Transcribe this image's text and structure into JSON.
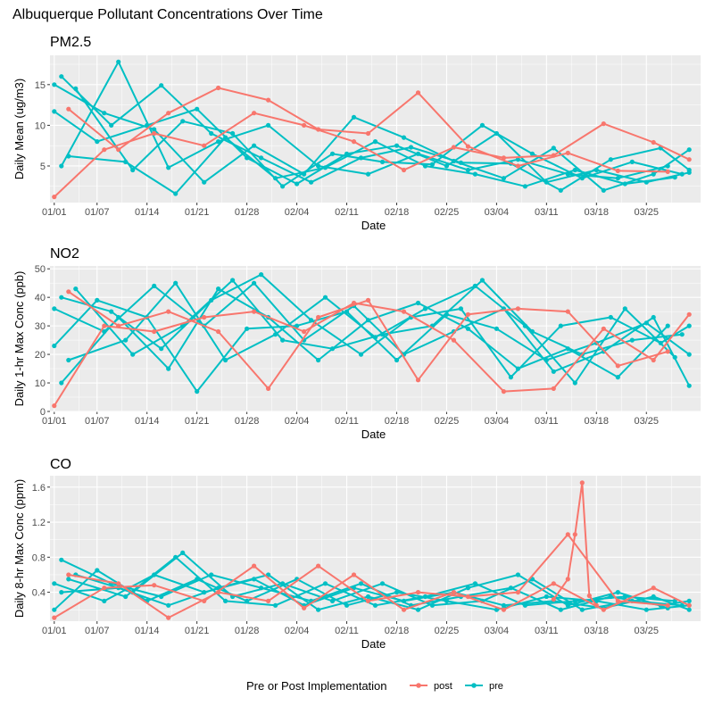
{
  "title": "Albuquerque Pollutant Concentrations Over Time",
  "colors": {
    "post": "#F8766D",
    "pre": "#00BFC4",
    "panel_bg": "#EBEBEB",
    "grid": "#FFFFFF"
  },
  "legend": {
    "title": "Pre or Post Implementation",
    "items": [
      "post",
      "pre"
    ]
  },
  "chart_data": [
    {
      "type": "line",
      "title": "PM2.5",
      "xlabel": "Date",
      "ylabel": "Daily Mean (ug/m3)",
      "x_ticks": [
        "01/01",
        "01/07",
        "01/14",
        "01/21",
        "01/28",
        "02/04",
        "02/11",
        "02/18",
        "02/25",
        "03/04",
        "03/11",
        "03/18",
        "03/25"
      ],
      "y_ticks": [
        5,
        10,
        15
      ],
      "ylim": [
        0.5,
        18.6
      ],
      "legend_position": "bottom",
      "grid": true,
      "series": [
        {
          "name": "post",
          "x": [
            "01/01",
            "01/08",
            "01/15",
            "01/22",
            "01/29",
            "02/05",
            "02/12",
            "02/19",
            "02/26",
            "03/05",
            "03/12",
            "03/19",
            "03/26",
            "03/31"
          ],
          "y": [
            1.2,
            7.0,
            9.0,
            7.5,
            11.5,
            10.0,
            8.0,
            4.5,
            7.3,
            6.0,
            6.3,
            10.2,
            7.9,
            5.8
          ]
        },
        {
          "name": "post",
          "x": [
            "01/03",
            "01/10",
            "01/17",
            "01/24",
            "01/31",
            "02/07",
            "02/14",
            "02/21",
            "02/28",
            "03/07",
            "03/14",
            "03/21",
            "03/28"
          ],
          "y": [
            12.0,
            7.0,
            11.5,
            14.6,
            13.1,
            9.5,
            9.0,
            14.0,
            7.4,
            5.0,
            6.6,
            4.4,
            4.3
          ]
        },
        {
          "name": "pre",
          "x": [
            "01/01",
            "01/08",
            "01/15",
            "01/22",
            "01/29",
            "02/05",
            "02/12",
            "02/19",
            "02/26",
            "03/05",
            "03/12",
            "03/19",
            "03/26",
            "03/31"
          ],
          "y": [
            15.0,
            11.5,
            9.5,
            3.0,
            7.5,
            4.0,
            11.0,
            8.5,
            5.6,
            3.5,
            7.2,
            2.0,
            4.0,
            7.0
          ]
        },
        {
          "name": "pre",
          "x": [
            "01/02",
            "01/09",
            "01/16",
            "01/23",
            "01/30",
            "02/06",
            "02/13",
            "02/20",
            "02/27",
            "03/06",
            "03/13",
            "03/20",
            "03/27",
            "03/31"
          ],
          "y": [
            16.0,
            10.0,
            14.9,
            9.0,
            6.0,
            3.0,
            6.0,
            7.3,
            5.4,
            5.3,
            2.0,
            5.8,
            7.2,
            4.5
          ]
        },
        {
          "name": "pre",
          "x": [
            "01/01",
            "01/07",
            "01/14",
            "01/21",
            "01/28",
            "02/04",
            "02/11",
            "02/18",
            "02/25",
            "03/04",
            "03/11",
            "03/18",
            "03/25",
            "03/31"
          ],
          "y": [
            11.7,
            8.0,
            10.0,
            12.0,
            6.0,
            2.8,
            6.5,
            7.5,
            5.0,
            9.0,
            3.0,
            4.5,
            3.0,
            4.2
          ]
        },
        {
          "name": "pre",
          "x": [
            "01/02",
            "01/10",
            "01/17",
            "01/24",
            "01/31",
            "02/07",
            "02/14",
            "02/21",
            "02/28",
            "03/07",
            "03/14",
            "03/21",
            "03/28"
          ],
          "y": [
            5.0,
            17.8,
            4.8,
            8.0,
            10.0,
            5.0,
            4.0,
            6.5,
            4.5,
            5.8,
            4.0,
            3.5,
            5.0
          ]
        },
        {
          "name": "pre",
          "x": [
            "01/03",
            "01/11",
            "01/18",
            "01/25",
            "02/01",
            "02/08",
            "02/15",
            "02/22",
            "03/01",
            "03/08",
            "03/15",
            "03/22",
            "03/29"
          ],
          "y": [
            6.2,
            5.5,
            1.6,
            8.5,
            3.5,
            4.8,
            8.0,
            5.0,
            4.0,
            2.5,
            4.5,
            2.8,
            3.6
          ]
        },
        {
          "name": "pre",
          "x": [
            "01/04",
            "01/12",
            "01/19",
            "01/26",
            "02/02",
            "02/09",
            "02/16",
            "02/23",
            "03/02",
            "03/09",
            "03/16",
            "03/23",
            "03/30"
          ],
          "y": [
            14.5,
            4.5,
            10.5,
            9.0,
            2.5,
            6.5,
            5.5,
            5.2,
            10.0,
            6.5,
            3.5,
            5.5,
            4.0
          ]
        }
      ]
    },
    {
      "type": "line",
      "title": "NO2",
      "xlabel": "Date",
      "ylabel": "Daily 1-hr Max Conc (ppb)",
      "x_ticks": [
        "01/01",
        "01/07",
        "01/14",
        "01/21",
        "01/28",
        "02/04",
        "02/11",
        "02/18",
        "02/25",
        "03/04",
        "03/11",
        "03/18",
        "03/25"
      ],
      "y_ticks": [
        0,
        10,
        20,
        30,
        40,
        50
      ],
      "ylim": [
        0,
        51
      ],
      "legend_position": "bottom",
      "grid": true,
      "series": [
        {
          "name": "post",
          "x": [
            "01/01",
            "01/08",
            "01/15",
            "01/22",
            "01/29",
            "02/05",
            "02/12",
            "02/19",
            "02/26",
            "03/05",
            "03/12",
            "03/19",
            "03/26",
            "03/31"
          ],
          "y": [
            2.0,
            30.0,
            28.0,
            33.0,
            35.0,
            28.0,
            38.0,
            35.0,
            25.0,
            7.0,
            8.0,
            29.0,
            18.0,
            34.0
          ]
        },
        {
          "name": "post",
          "x": [
            "01/03",
            "01/10",
            "01/17",
            "01/24",
            "01/31",
            "02/07",
            "02/14",
            "02/21",
            "02/28",
            "03/07",
            "03/14",
            "03/21",
            "03/28"
          ],
          "y": [
            42.0,
            30.0,
            35.0,
            28.0,
            8.0,
            33.0,
            39.0,
            11.0,
            34.0,
            36.0,
            35.0,
            16.0,
            21.0
          ]
        },
        {
          "name": "pre",
          "x": [
            "01/01",
            "01/08",
            "01/15",
            "01/22",
            "01/29",
            "02/05",
            "02/12",
            "02/19",
            "02/26",
            "03/05",
            "03/12",
            "03/19",
            "03/26",
            "03/31"
          ],
          "y": [
            36.0,
            28.0,
            44.0,
            30.0,
            45.0,
            25.0,
            37.0,
            20.0,
            28.0,
            36.0,
            14.0,
            21.0,
            33.0,
            9.0
          ]
        },
        {
          "name": "pre",
          "x": [
            "01/02",
            "01/09",
            "01/16",
            "01/23",
            "01/30",
            "02/06",
            "02/13",
            "02/20",
            "02/27",
            "03/06",
            "03/13",
            "03/20",
            "03/27",
            "03/31"
          ],
          "y": [
            40.0,
            35.0,
            22.0,
            39.0,
            48.0,
            32.0,
            20.0,
            33.0,
            36.0,
            12.0,
            30.0,
            33.0,
            24.0,
            30.0
          ]
        },
        {
          "name": "pre",
          "x": [
            "01/01",
            "01/07",
            "01/14",
            "01/21",
            "01/28",
            "02/04",
            "02/11",
            "02/18",
            "02/25",
            "03/04",
            "03/11",
            "03/18",
            "03/25",
            "03/31"
          ],
          "y": [
            23.0,
            39.0,
            33.0,
            7.0,
            29.0,
            30.0,
            35.0,
            18.0,
            34.0,
            29.0,
            18.0,
            24.0,
            31.0,
            20.0
          ]
        },
        {
          "name": "pre",
          "x": [
            "01/02",
            "01/10",
            "01/17",
            "01/24",
            "01/31",
            "02/07",
            "02/14",
            "02/21",
            "02/28",
            "03/07",
            "03/14",
            "03/21",
            "03/28"
          ],
          "y": [
            10.0,
            33.0,
            15.0,
            43.0,
            33.0,
            18.0,
            32.0,
            38.0,
            29.0,
            15.0,
            22.0,
            12.0,
            30.0
          ]
        },
        {
          "name": "pre",
          "x": [
            "01/03",
            "01/11",
            "01/18",
            "01/25",
            "02/01",
            "02/08",
            "02/15",
            "02/22",
            "03/01",
            "03/08",
            "03/15",
            "03/22",
            "03/29"
          ],
          "y": [
            18.0,
            25.0,
            45.0,
            18.0,
            27.0,
            40.0,
            26.0,
            36.0,
            44.0,
            30.0,
            10.0,
            36.0,
            19.0
          ]
        },
        {
          "name": "pre",
          "x": [
            "01/04",
            "01/12",
            "01/19",
            "01/26",
            "02/02",
            "02/09",
            "02/16",
            "02/23",
            "03/02",
            "03/09",
            "03/16",
            "03/23",
            "03/30"
          ],
          "y": [
            43.0,
            20.0,
            30.0,
            46.0,
            25.0,
            22.0,
            27.0,
            30.0,
            46.0,
            28.0,
            20.0,
            25.0,
            27.0
          ]
        }
      ]
    },
    {
      "type": "line",
      "title": "CO",
      "xlabel": "Date",
      "ylabel": "Daily 8-hr Max Conc (ppm)",
      "x_ticks": [
        "01/01",
        "01/07",
        "01/14",
        "01/21",
        "01/28",
        "02/04",
        "02/11",
        "02/18",
        "02/25",
        "03/04",
        "03/11",
        "03/18",
        "03/25"
      ],
      "y_ticks": [
        0.4,
        0.8,
        1.2,
        1.6
      ],
      "ylim": [
        0.07,
        1.73
      ],
      "legend_position": "bottom",
      "grid": true,
      "series": [
        {
          "name": "post",
          "x": [
            "01/01",
            "01/08",
            "01/15",
            "01/22",
            "01/29",
            "02/05",
            "02/12",
            "02/19",
            "02/26",
            "03/05",
            "03/12",
            "03/19",
            "03/26",
            "03/31"
          ],
          "y": [
            0.11,
            0.45,
            0.48,
            0.3,
            0.7,
            0.22,
            0.6,
            0.2,
            0.4,
            0.2,
            0.5,
            0.2,
            0.45,
            0.25
          ]
        },
        {
          "name": "post",
          "x": [
            "01/03",
            "01/10",
            "01/17",
            "01/24",
            "01/31",
            "02/07",
            "02/14",
            "02/21",
            "02/28",
            "03/07",
            "03/14",
            "03/21",
            "03/28"
          ],
          "y": [
            0.6,
            0.5,
            0.11,
            0.4,
            0.3,
            0.7,
            0.3,
            0.4,
            0.35,
            0.4,
            1.06,
            0.3,
            0.25
          ]
        },
        {
          "name": "post",
          "x": [
            "03/12",
            "03/14",
            "03/15",
            "03/16",
            "03/17",
            "03/18"
          ],
          "y": [
            0.32,
            0.55,
            1.06,
            1.65,
            0.36,
            0.25
          ]
        },
        {
          "name": "pre",
          "x": [
            "01/01",
            "01/08",
            "01/15",
            "01/22",
            "01/29",
            "02/05",
            "02/12",
            "02/19",
            "02/26",
            "03/05",
            "03/12",
            "03/19",
            "03/26",
            "03/31"
          ],
          "y": [
            0.5,
            0.3,
            0.6,
            0.4,
            0.55,
            0.25,
            0.45,
            0.3,
            0.4,
            0.25,
            0.3,
            0.22,
            0.35,
            0.2
          ]
        },
        {
          "name": "pre",
          "x": [
            "01/02",
            "01/09",
            "01/16",
            "01/23",
            "01/30",
            "02/06",
            "02/13",
            "02/20",
            "02/27",
            "03/06",
            "03/13",
            "03/20",
            "03/27",
            "03/31"
          ],
          "y": [
            0.77,
            0.5,
            0.35,
            0.6,
            0.45,
            0.3,
            0.5,
            0.25,
            0.35,
            0.45,
            0.2,
            0.35,
            0.25,
            0.3
          ]
        },
        {
          "name": "pre",
          "x": [
            "01/01",
            "01/07",
            "01/14",
            "01/21",
            "01/28",
            "02/04",
            "02/11",
            "02/18",
            "02/25",
            "03/04",
            "03/11",
            "03/18",
            "03/25",
            "03/31"
          ],
          "y": [
            0.2,
            0.65,
            0.3,
            0.55,
            0.3,
            0.55,
            0.25,
            0.4,
            0.3,
            0.2,
            0.35,
            0.3,
            0.2,
            0.25
          ]
        },
        {
          "name": "pre",
          "x": [
            "01/02",
            "01/10",
            "01/17",
            "01/24",
            "01/31",
            "02/07",
            "02/14",
            "02/21",
            "02/28",
            "03/07",
            "03/14",
            "03/21",
            "03/28"
          ],
          "y": [
            0.4,
            0.45,
            0.25,
            0.45,
            0.6,
            0.2,
            0.35,
            0.2,
            0.45,
            0.6,
            0.25,
            0.4,
            0.22
          ]
        },
        {
          "name": "pre",
          "x": [
            "01/03",
            "01/11",
            "01/18",
            "01/25",
            "02/01",
            "02/08",
            "02/15",
            "02/22",
            "03/01",
            "03/08",
            "03/15",
            "03/22",
            "03/29"
          ],
          "y": [
            0.55,
            0.35,
            0.8,
            0.3,
            0.25,
            0.5,
            0.25,
            0.35,
            0.5,
            0.25,
            0.3,
            0.35,
            0.3
          ]
        },
        {
          "name": "pre",
          "x": [
            "01/04",
            "01/12",
            "01/19",
            "01/26",
            "02/02",
            "02/09",
            "02/16",
            "02/23",
            "03/02",
            "03/09",
            "03/16",
            "03/23",
            "03/30"
          ],
          "y": [
            0.6,
            0.4,
            0.85,
            0.35,
            0.5,
            0.3,
            0.5,
            0.25,
            0.3,
            0.55,
            0.2,
            0.3,
            0.25
          ]
        }
      ]
    }
  ]
}
